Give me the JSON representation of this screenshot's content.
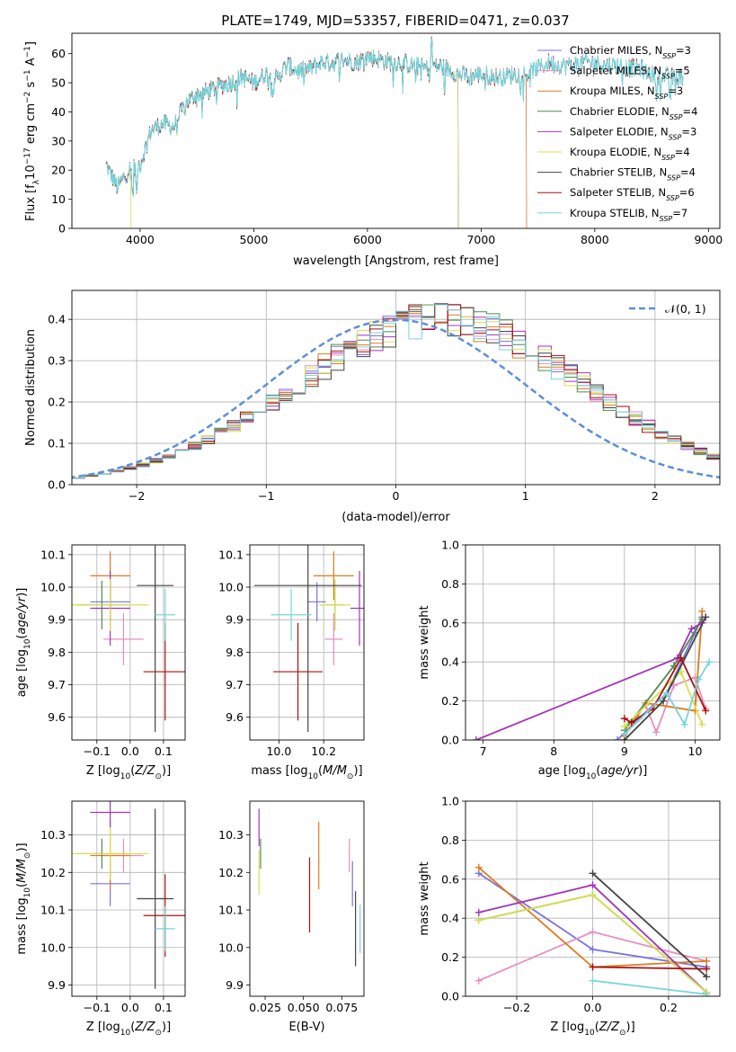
{
  "figure": {
    "title": "PLATE=1749, MJD=53357, FIBERID=0471, z=0.037",
    "model_colors": [
      "#7b72d8",
      "#e58fbf",
      "#e07a1b",
      "#4f8a4f",
      "#a334b8",
      "#d8e04e",
      "#444444",
      "#aa1111",
      "#74d5dd"
    ]
  },
  "chart_data": [
    {
      "id": "spectrum",
      "type": "line",
      "title": "PLATE=1749, MJD=53357, FIBERID=0471, z=0.037",
      "xlabel": "wavelength [Angstrom, rest frame]",
      "ylabel_parts": [
        "Flux [f",
        "λ",
        "10",
        "−17",
        " erg cm",
        "−2",
        " s",
        "−1",
        " A",
        "−1",
        "]"
      ],
      "xlim": [
        3400,
        9100
      ],
      "ylim": [
        0,
        67
      ],
      "xticks": [
        4000,
        5000,
        6000,
        7000,
        8000,
        9000
      ],
      "yticks": [
        0,
        10,
        20,
        30,
        40,
        50,
        60
      ],
      "continuum": [
        [
          3700,
          22
        ],
        [
          3800,
          14
        ],
        [
          3900,
          20
        ],
        [
          4000,
          22
        ],
        [
          4100,
          34
        ],
        [
          4200,
          36
        ],
        [
          4300,
          35
        ],
        [
          4400,
          43
        ],
        [
          4500,
          46
        ],
        [
          4600,
          47
        ],
        [
          4700,
          49
        ],
        [
          4800,
          50
        ],
        [
          4900,
          52
        ],
        [
          5000,
          50
        ],
        [
          5100,
          53
        ],
        [
          5200,
          52
        ],
        [
          5300,
          56
        ],
        [
          5400,
          54
        ],
        [
          5500,
          55
        ],
        [
          5600,
          57
        ],
        [
          5700,
          57
        ],
        [
          5800,
          58
        ],
        [
          5900,
          57
        ],
        [
          6000,
          59
        ],
        [
          6100,
          58
        ],
        [
          6200,
          57
        ],
        [
          6300,
          57
        ],
        [
          6400,
          56
        ],
        [
          6500,
          55
        ],
        [
          6600,
          56
        ],
        [
          6700,
          55
        ],
        [
          6800,
          53
        ],
        [
          6900,
          52
        ],
        [
          7000,
          53
        ],
        [
          7100,
          52
        ],
        [
          7200,
          52
        ],
        [
          7300,
          53
        ],
        [
          7400,
          53
        ],
        [
          7500,
          55
        ],
        [
          7600,
          57
        ],
        [
          7700,
          56
        ],
        [
          7800,
          56
        ],
        [
          7900,
          57
        ],
        [
          8000,
          57
        ],
        [
          8100,
          56
        ],
        [
          8200,
          56
        ],
        [
          8300,
          55
        ],
        [
          8400,
          55
        ],
        [
          8500,
          53
        ],
        [
          8600,
          52
        ],
        [
          8700,
          52
        ]
      ],
      "series": [
        {
          "name": "Chabrier MILES, N",
          "sub": "SSP",
          "eq": "=3",
          "end": 7400
        },
        {
          "name": "Salpeter MILES, N",
          "sub": "SSP",
          "eq": "=5",
          "end": 7400
        },
        {
          "name": "Kroupa MILES, N",
          "sub": "SSP",
          "eq": "=3",
          "end": 7400
        },
        {
          "name": "Chabrier ELODIE, N",
          "sub": "SSP",
          "eq": "=4",
          "end": 6800
        },
        {
          "name": "Salpeter ELODIE, N",
          "sub": "SSP",
          "eq": "=3",
          "end": 6800
        },
        {
          "name": "Kroupa ELODIE, N",
          "sub": "SSP",
          "eq": "=4",
          "end": 6800
        },
        {
          "name": "Chabrier STELIB, N",
          "sub": "SSP",
          "eq": "=4",
          "end": 8800
        },
        {
          "name": "Salpeter STELIB, N",
          "sub": "SSP",
          "eq": "=6",
          "end": 8800
        },
        {
          "name": "Kroupa STELIB, N",
          "sub": "SSP",
          "eq": "=7",
          "end": 8800
        }
      ]
    },
    {
      "id": "residual_hist",
      "type": "histogram",
      "xlabel": "(data-model)/error",
      "ylabel": "Normed distribution",
      "xlim": [
        -2.5,
        2.5
      ],
      "ylim": [
        0,
        0.47
      ],
      "xticks": [
        -2,
        -1,
        0,
        1,
        2
      ],
      "xtick_labels": [
        "−2",
        "−1",
        "0",
        "1",
        "2"
      ],
      "yticks": [
        0,
        0.1,
        0.2,
        0.3,
        0.4
      ],
      "yticklabels": [
        "0.0",
        "0.1",
        "0.2",
        "0.3",
        "0.4"
      ],
      "bin_width": 0.1,
      "bin_start": -2.5,
      "legend": {
        "text": "𝒩(0, 1)",
        "position": "upper right",
        "color": "#5b8fd6"
      },
      "base": [
        0.018,
        0.022,
        0.027,
        0.033,
        0.04,
        0.048,
        0.057,
        0.068,
        0.08,
        0.093,
        0.108,
        0.124,
        0.141,
        0.16,
        0.18,
        0.2,
        0.221,
        0.243,
        0.264,
        0.286,
        0.306,
        0.325,
        0.343,
        0.359,
        0.373,
        0.385,
        0.394,
        0.4,
        0.402,
        0.4,
        0.395,
        0.386,
        0.374,
        0.36,
        0.344,
        0.326,
        0.306,
        0.286,
        0.265,
        0.244,
        0.222,
        0.201,
        0.18,
        0.16,
        0.142,
        0.124,
        0.108,
        0.093,
        0.08,
        0.068
      ]
    },
    {
      "id": "age_vs_Z",
      "type": "errorbar",
      "xlabel": "Z [log10(Z/Z⊙)]",
      "ylabel": "age [log10(age/yr)]",
      "xlim": [
        -0.175,
        0.165
      ],
      "ylim": [
        9.53,
        10.13
      ],
      "xticks": [
        -0.1,
        0.0,
        0.1
      ],
      "xticklabels": [
        "−0.1",
        "0.0",
        "0.1"
      ],
      "yticks": [
        9.6,
        9.7,
        9.8,
        9.9,
        10.0,
        10.1
      ],
      "yticklabels": [
        "9.6",
        "9.7",
        "9.8",
        "9.9",
        "10.0",
        "10.1"
      ],
      "points": [
        {
          "x": -0.06,
          "xerr": 0.06,
          "y": 9.955,
          "yerr": 0.06
        },
        {
          "x": -0.02,
          "xerr": 0.06,
          "y": 9.84,
          "yerr": 0.08
        },
        {
          "x": -0.06,
          "xerr": 0.06,
          "y": 10.035,
          "yerr": 0.075
        },
        {
          "x": -0.085,
          "xerr": 0.075,
          "y": 9.945,
          "yerr": 0.075
        },
        {
          "x": -0.06,
          "xerr": 0.06,
          "y": 9.935,
          "yerr": 0.115
        },
        {
          "x": -0.06,
          "xerr": 0.115,
          "y": 9.945,
          "yerr": 0.08
        },
        {
          "x": 0.075,
          "xerr": 0.055,
          "y": 10.005,
          "yerr": 0.45
        },
        {
          "x": 0.105,
          "xerr": 0.065,
          "y": 9.74,
          "yerr": 0.15
        },
        {
          "x": 0.105,
          "xerr": 0.03,
          "y": 9.915,
          "yerr": 0.08
        }
      ]
    },
    {
      "id": "age_vs_mass",
      "type": "errorbar",
      "xlabel": "mass [log10(M/M⊙)]",
      "ylabel": "",
      "xlim": [
        9.87,
        10.38
      ],
      "ylim": [
        9.53,
        10.13
      ],
      "xticks": [
        10.0,
        10.2
      ],
      "xticklabels": [
        "10.0",
        "10.2"
      ],
      "yticks": [
        9.6,
        9.7,
        9.8,
        9.9,
        10.0,
        10.1
      ],
      "yticklabels": [
        "9.6",
        "9.7",
        "9.8",
        "9.9",
        "10.0",
        "10.1"
      ],
      "points": [
        {
          "x": 10.17,
          "xerr": 0.04,
          "y": 9.955,
          "yerr": 0.06
        },
        {
          "x": 10.245,
          "xerr": 0.04,
          "y": 9.84,
          "yerr": 0.08
        },
        {
          "x": 10.245,
          "xerr": 0.09,
          "y": 10.035,
          "yerr": 0.075
        },
        {
          "x": 10.25,
          "xerr": 0.04,
          "y": 9.945,
          "yerr": 0.075
        },
        {
          "x": 10.36,
          "xerr": 0.04,
          "y": 9.935,
          "yerr": 0.115
        },
        {
          "x": 10.25,
          "xerr": 0.07,
          "y": 9.945,
          "yerr": 0.08
        },
        {
          "x": 10.13,
          "xerr": 0.24,
          "y": 10.005,
          "yerr": 0.45
        },
        {
          "x": 10.085,
          "xerr": 0.11,
          "y": 9.74,
          "yerr": 0.15
        },
        {
          "x": 10.055,
          "xerr": 0.09,
          "y": 9.915,
          "yerr": 0.08
        }
      ]
    },
    {
      "id": "weight_vs_age",
      "type": "line",
      "xlabel": "age [log10(age/yr)]",
      "ylabel": "mass weight",
      "xlim": [
        6.75,
        10.35
      ],
      "ylim": [
        0,
        1.0
      ],
      "xticks": [
        7,
        8,
        9,
        10
      ],
      "xticklabels": [
        "7",
        "8",
        "9",
        "10"
      ],
      "yticks": [
        0,
        0.2,
        0.4,
        0.6,
        0.8,
        1.0
      ],
      "yticklabels": [
        "0.0",
        "0.2",
        "0.4",
        "0.6",
        "0.8",
        "1.0"
      ],
      "series": [
        {
          "points": [
            [
              8.9,
              0.0
            ],
            [
              9.2,
              0.11
            ],
            [
              9.6,
              0.24
            ],
            [
              10.0,
              0.55
            ],
            [
              10.1,
              0.63
            ]
          ]
        },
        {
          "points": [
            [
              9.3,
              0.18
            ],
            [
              9.45,
              0.04
            ],
            [
              9.7,
              0.28
            ],
            [
              10.0,
              0.32
            ],
            [
              10.15,
              0.16
            ]
          ]
        },
        {
          "points": [
            [
              9.0,
              0.02
            ],
            [
              9.3,
              0.19
            ],
            [
              10.0,
              0.15
            ],
            [
              10.1,
              0.66
            ]
          ]
        },
        {
          "points": [
            [
              9.0,
              0.05
            ],
            [
              9.7,
              0.38
            ],
            [
              10.1,
              0.62
            ]
          ]
        },
        {
          "points": [
            [
              6.9,
              0.0
            ],
            [
              9.75,
              0.42
            ],
            [
              9.95,
              0.57
            ],
            [
              10.1,
              0.6
            ]
          ]
        },
        {
          "points": [
            [
              9.0,
              0.07
            ],
            [
              9.8,
              0.35
            ],
            [
              10.1,
              0.08
            ]
          ]
        },
        {
          "points": [
            [
              9.0,
              0.0
            ],
            [
              9.55,
              0.2
            ],
            [
              10.15,
              0.63
            ]
          ]
        },
        {
          "points": [
            [
              9.0,
              0.11
            ],
            [
              9.1,
              0.09
            ],
            [
              9.4,
              0.16
            ],
            [
              9.8,
              0.42
            ],
            [
              10.15,
              0.15
            ]
          ]
        },
        {
          "points": [
            [
              9.0,
              0.03
            ],
            [
              9.6,
              0.24
            ],
            [
              9.85,
              0.08
            ],
            [
              10.05,
              0.31
            ],
            [
              10.2,
              0.4
            ]
          ]
        }
      ]
    },
    {
      "id": "mass_vs_Z",
      "type": "errorbar",
      "xlabel": "Z [log10(Z/Z⊙)]",
      "ylabel": "mass [log10(M/M⊙)]",
      "xlim": [
        -0.175,
        0.165
      ],
      "ylim": [
        9.87,
        10.39
      ],
      "xticks": [
        -0.1,
        0.0,
        0.1
      ],
      "xticklabels": [
        "−0.1",
        "0.0",
        "0.1"
      ],
      "yticks": [
        9.9,
        10.0,
        10.1,
        10.2,
        10.3
      ],
      "yticklabels": [
        "9.9",
        "10.0",
        "10.1",
        "10.2",
        "10.3"
      ],
      "points": [
        {
          "x": -0.06,
          "xerr": 0.06,
          "y": 10.17,
          "yerr": 0.06
        },
        {
          "x": -0.02,
          "xerr": 0.06,
          "y": 10.245,
          "yerr": 0.045
        },
        {
          "x": -0.06,
          "xerr": 0.06,
          "y": 10.245,
          "yerr": 0.09
        },
        {
          "x": -0.085,
          "xerr": 0.075,
          "y": 10.25,
          "yerr": 0.04
        },
        {
          "x": -0.06,
          "xerr": 0.06,
          "y": 10.36,
          "yerr": 0.04
        },
        {
          "x": -0.06,
          "xerr": 0.115,
          "y": 10.25,
          "yerr": 0.07
        },
        {
          "x": 0.075,
          "xerr": 0.055,
          "y": 10.13,
          "yerr": 0.24
        },
        {
          "x": 0.105,
          "xerr": 0.065,
          "y": 10.085,
          "yerr": 0.11
        },
        {
          "x": 0.105,
          "xerr": 0.03,
          "y": 10.05,
          "yerr": 0.06
        }
      ]
    },
    {
      "id": "mass_vs_ebv",
      "type": "errorbar",
      "xlabel": "E(B-V)",
      "ylabel": "",
      "xlim": [
        0.015,
        0.0895
      ],
      "ylim": [
        9.87,
        10.39
      ],
      "xticks": [
        0.025,
        0.05,
        0.075
      ],
      "xticklabels": [
        "0.025",
        "0.050",
        "0.075"
      ],
      "yticks": [
        9.9,
        10.0,
        10.1,
        10.2,
        10.3
      ],
      "yticklabels": [
        "9.9",
        "10.0",
        "10.1",
        "10.2",
        "10.3"
      ],
      "points": [
        {
          "x": 0.082,
          "y": 10.17,
          "yerr": 0.06
        },
        {
          "x": 0.08,
          "y": 10.245,
          "yerr": 0.045
        },
        {
          "x": 0.06,
          "y": 10.245,
          "yerr": 0.09
        },
        {
          "x": 0.022,
          "y": 10.25,
          "yerr": 0.04
        },
        {
          "x": 0.021,
          "y": 10.32,
          "yerr": 0.05
        },
        {
          "x": 0.021,
          "y": 10.2,
          "yerr": 0.06
        },
        {
          "x": 0.084,
          "y": 10.05,
          "yerr": 0.1
        },
        {
          "x": 0.054,
          "y": 10.14,
          "yerr": 0.1
        },
        {
          "x": 0.087,
          "y": 10.05,
          "yerr": 0.065
        }
      ]
    },
    {
      "id": "weight_vs_Z",
      "type": "line",
      "xlabel": "Z [log10(Z/Z⊙)]",
      "ylabel": "mass weight",
      "xlim": [
        -0.335,
        0.335
      ],
      "ylim": [
        0,
        1.0
      ],
      "xticks": [
        -0.2,
        0.0,
        0.2
      ],
      "xticklabels": [
        "−0.2",
        "0.0",
        "0.2"
      ],
      "yticks": [
        0,
        0.2,
        0.4,
        0.6,
        0.8,
        1.0
      ],
      "yticklabels": [
        "0.0",
        "0.2",
        "0.4",
        "0.6",
        "0.8",
        "1.0"
      ],
      "series": [
        {
          "points": [
            [
              -0.3,
              0.63
            ],
            [
              0.0,
              0.24
            ],
            [
              0.3,
              0.15
            ]
          ]
        },
        {
          "points": [
            [
              -0.3,
              0.08
            ],
            [
              0.0,
              0.33
            ],
            [
              0.3,
              0.18
            ]
          ]
        },
        {
          "points": [
            [
              -0.3,
              0.66
            ],
            [
              0.0,
              0.15
            ],
            [
              0.3,
              0.18
            ]
          ]
        },
        {
          "points": [
            [
              -0.3,
              0.39
            ],
            [
              0.0,
              0.52
            ],
            [
              0.3,
              0.02
            ]
          ]
        },
        {
          "points": [
            [
              -0.3,
              0.43
            ],
            [
              0.0,
              0.57
            ],
            [
              0.3,
              0.02
            ]
          ]
        },
        {
          "points": [
            [
              -0.3,
              0.39
            ],
            [
              0.0,
              0.52
            ],
            [
              0.3,
              0.02
            ]
          ]
        },
        {
          "points": [
            [
              0.0,
              0.63
            ],
            [
              0.3,
              0.1
            ]
          ]
        },
        {
          "points": [
            [
              0.0,
              0.15
            ],
            [
              0.3,
              0.14
            ]
          ]
        },
        {
          "points": [
            [
              0.0,
              0.08
            ],
            [
              0.3,
              0.01
            ]
          ]
        }
      ]
    }
  ]
}
